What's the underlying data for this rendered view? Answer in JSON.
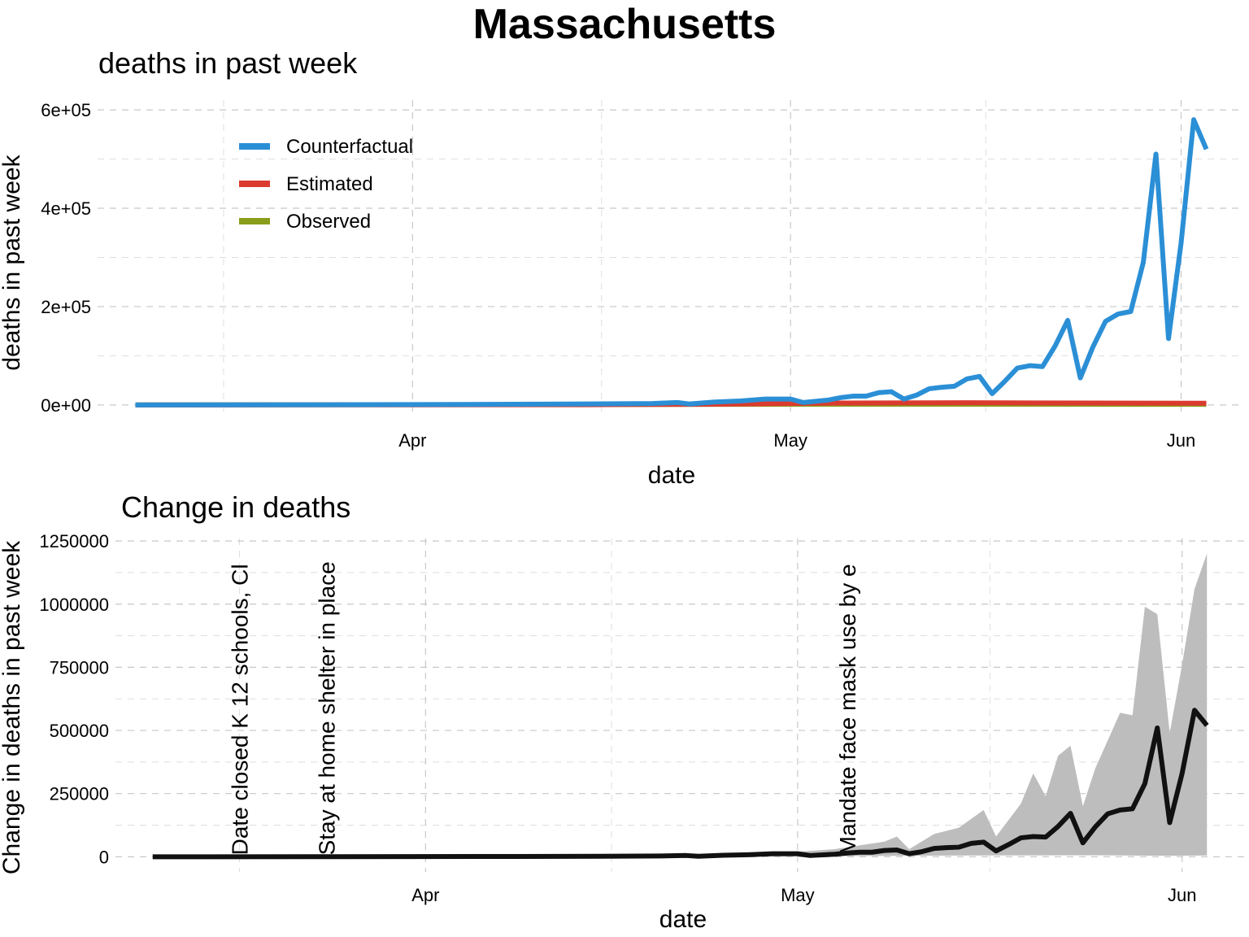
{
  "title": "Massachusetts",
  "colors": {
    "counterfactual": "#2b8fd6",
    "estimated": "#db3b2f",
    "observed": "#8a9d1a",
    "change_line": "#111111",
    "change_band": "#bdbdbd"
  },
  "chart_data": [
    {
      "type": "line",
      "title": "deaths in past week",
      "xlabel": "date",
      "ylabel": "deaths in past week",
      "x_ticks": [
        {
          "date": "2020-04-01",
          "label": "Apr"
        },
        {
          "date": "2020-05-01",
          "label": "May"
        },
        {
          "date": "2020-06-01",
          "label": "Jun"
        }
      ],
      "y_ticks": [
        {
          "value": 0,
          "label": "0e+00"
        },
        {
          "value": 200000,
          "label": "2e+05"
        },
        {
          "value": 400000,
          "label": "4e+05"
        },
        {
          "value": 600000,
          "label": "6e+05"
        }
      ],
      "xlim": [
        "2020-03-07",
        "2020-06-06"
      ],
      "ylim": [
        -25000,
        620000
      ],
      "grid": true,
      "legend": {
        "position": "top-left"
      },
      "series": [
        {
          "name": "Counterfactual",
          "color_key": "counterfactual",
          "points": [
            [
              "2020-03-10",
              0
            ],
            [
              "2020-03-25",
              500
            ],
            [
              "2020-04-05",
              1000
            ],
            [
              "2020-04-15",
              2000
            ],
            [
              "2020-04-20",
              3000
            ],
            [
              "2020-04-22",
              5000
            ],
            [
              "2020-04-23",
              2000
            ],
            [
              "2020-04-25",
              6000
            ],
            [
              "2020-04-27",
              8000
            ],
            [
              "2020-04-29",
              12000
            ],
            [
              "2020-05-01",
              12000
            ],
            [
              "2020-05-02",
              5000
            ],
            [
              "2020-05-04",
              10000
            ],
            [
              "2020-05-05",
              15000
            ],
            [
              "2020-05-06",
              18000
            ],
            [
              "2020-05-07",
              18000
            ],
            [
              "2020-05-08",
              25000
            ],
            [
              "2020-05-09",
              27000
            ],
            [
              "2020-05-10",
              12000
            ],
            [
              "2020-05-11",
              20000
            ],
            [
              "2020-05-12",
              33000
            ],
            [
              "2020-05-13",
              36000
            ],
            [
              "2020-05-14",
              38000
            ],
            [
              "2020-05-15",
              53000
            ],
            [
              "2020-05-16",
              58000
            ],
            [
              "2020-05-17",
              23000
            ],
            [
              "2020-05-18",
              48000
            ],
            [
              "2020-05-19",
              75000
            ],
            [
              "2020-05-20",
              80000
            ],
            [
              "2020-05-21",
              78000
            ],
            [
              "2020-05-22",
              120000
            ],
            [
              "2020-05-23",
              172000
            ],
            [
              "2020-05-24",
              55000
            ],
            [
              "2020-05-25",
              118000
            ],
            [
              "2020-05-26",
              170000
            ],
            [
              "2020-05-27",
              185000
            ],
            [
              "2020-05-28",
              190000
            ],
            [
              "2020-05-29",
              290000
            ],
            [
              "2020-05-30",
              510000
            ],
            [
              "2020-05-31",
              135000
            ],
            [
              "2020-06-01",
              330000
            ],
            [
              "2020-06-02",
              580000
            ],
            [
              "2020-06-03",
              520000
            ]
          ]
        },
        {
          "name": "Estimated",
          "color_key": "estimated",
          "points": [
            [
              "2020-03-10",
              0
            ],
            [
              "2020-04-15",
              500
            ],
            [
              "2020-04-25",
              1500
            ],
            [
              "2020-05-01",
              3000
            ],
            [
              "2020-05-05",
              4000
            ],
            [
              "2020-05-15",
              4500
            ],
            [
              "2020-05-25",
              4000
            ],
            [
              "2020-06-03",
              3500
            ]
          ]
        },
        {
          "name": "Observed",
          "color_key": "observed",
          "points": [
            [
              "2020-03-10",
              300
            ],
            [
              "2020-04-15",
              800
            ],
            [
              "2020-05-01",
              1500
            ],
            [
              "2020-05-15",
              1500
            ],
            [
              "2020-06-03",
              1200
            ]
          ]
        }
      ]
    },
    {
      "type": "area",
      "title": "Change in deaths",
      "xlabel": "date",
      "ylabel": "Change in deaths in past week",
      "x_ticks": [
        {
          "date": "2020-04-01",
          "label": "Apr"
        },
        {
          "date": "2020-05-01",
          "label": "May"
        },
        {
          "date": "2020-06-01",
          "label": "Jun"
        }
      ],
      "y_ticks": [
        {
          "value": 0,
          "label": "0"
        },
        {
          "value": 250000,
          "label": "250000"
        },
        {
          "value": 500000,
          "label": "500000"
        },
        {
          "value": 750000,
          "label": "750000"
        },
        {
          "value": 1000000,
          "label": "1000000"
        },
        {
          "value": 1250000,
          "label": "1250000"
        }
      ],
      "xlim": [
        "2020-03-07",
        "2020-06-06"
      ],
      "ylim": [
        -60000,
        1260000
      ],
      "grid": true,
      "annotations": [
        {
          "date": "2020-03-17",
          "text": "Date closed K 12 schools, Cl"
        },
        {
          "date": "2020-03-24",
          "text": "Stay at home  shelter in place"
        },
        {
          "date": "2020-05-05",
          "text": "Mandate face mask use by e"
        }
      ],
      "series": [
        {
          "name": "",
          "color_key": "change_line",
          "points": [
            [
              "2020-03-10",
              0
            ],
            [
              "2020-03-25",
              500
            ],
            [
              "2020-04-05",
              1000
            ],
            [
              "2020-04-15",
              2000
            ],
            [
              "2020-04-20",
              3000
            ],
            [
              "2020-04-22",
              5000
            ],
            [
              "2020-04-23",
              2000
            ],
            [
              "2020-04-25",
              6000
            ],
            [
              "2020-04-27",
              8000
            ],
            [
              "2020-04-29",
              12000
            ],
            [
              "2020-05-01",
              12000
            ],
            [
              "2020-05-02",
              5000
            ],
            [
              "2020-05-04",
              10000
            ],
            [
              "2020-05-05",
              15000
            ],
            [
              "2020-05-06",
              18000
            ],
            [
              "2020-05-07",
              18000
            ],
            [
              "2020-05-08",
              25000
            ],
            [
              "2020-05-09",
              27000
            ],
            [
              "2020-05-10",
              12000
            ],
            [
              "2020-05-11",
              20000
            ],
            [
              "2020-05-12",
              33000
            ],
            [
              "2020-05-13",
              36000
            ],
            [
              "2020-05-14",
              38000
            ],
            [
              "2020-05-15",
              53000
            ],
            [
              "2020-05-16",
              58000
            ],
            [
              "2020-05-17",
              23000
            ],
            [
              "2020-05-18",
              48000
            ],
            [
              "2020-05-19",
              75000
            ],
            [
              "2020-05-20",
              80000
            ],
            [
              "2020-05-21",
              78000
            ],
            [
              "2020-05-22",
              120000
            ],
            [
              "2020-05-23",
              172000
            ],
            [
              "2020-05-24",
              55000
            ],
            [
              "2020-05-25",
              118000
            ],
            [
              "2020-05-26",
              170000
            ],
            [
              "2020-05-27",
              185000
            ],
            [
              "2020-05-28",
              190000
            ],
            [
              "2020-05-29",
              290000
            ],
            [
              "2020-05-30",
              510000
            ],
            [
              "2020-05-31",
              135000
            ],
            [
              "2020-06-01",
              330000
            ],
            [
              "2020-06-02",
              580000
            ],
            [
              "2020-06-03",
              520000
            ]
          ]
        }
      ],
      "band": {
        "upper": [
          [
            "2020-03-10",
            0
          ],
          [
            "2020-04-20",
            8000
          ],
          [
            "2020-04-25",
            12000
          ],
          [
            "2020-05-01",
            20000
          ],
          [
            "2020-05-04",
            30000
          ],
          [
            "2020-05-06",
            45000
          ],
          [
            "2020-05-08",
            60000
          ],
          [
            "2020-05-09",
            80000
          ],
          [
            "2020-05-10",
            30000
          ],
          [
            "2020-05-12",
            90000
          ],
          [
            "2020-05-14",
            115000
          ],
          [
            "2020-05-16",
            185000
          ],
          [
            "2020-05-17",
            80000
          ],
          [
            "2020-05-19",
            210000
          ],
          [
            "2020-05-20",
            330000
          ],
          [
            "2020-05-21",
            240000
          ],
          [
            "2020-05-22",
            400000
          ],
          [
            "2020-05-23",
            440000
          ],
          [
            "2020-05-24",
            200000
          ],
          [
            "2020-05-25",
            350000
          ],
          [
            "2020-05-26",
            460000
          ],
          [
            "2020-05-27",
            570000
          ],
          [
            "2020-05-28",
            560000
          ],
          [
            "2020-05-29",
            990000
          ],
          [
            "2020-05-30",
            960000
          ],
          [
            "2020-05-31",
            490000
          ],
          [
            "2020-06-01",
            760000
          ],
          [
            "2020-06-02",
            1060000
          ],
          [
            "2020-06-03",
            1200000
          ]
        ],
        "lower": [
          [
            "2020-03-10",
            0
          ],
          [
            "2020-05-01",
            2000
          ],
          [
            "2020-05-15",
            5000
          ],
          [
            "2020-05-25",
            6000
          ],
          [
            "2020-05-31",
            4000
          ],
          [
            "2020-06-03",
            5000
          ]
        ]
      }
    }
  ]
}
